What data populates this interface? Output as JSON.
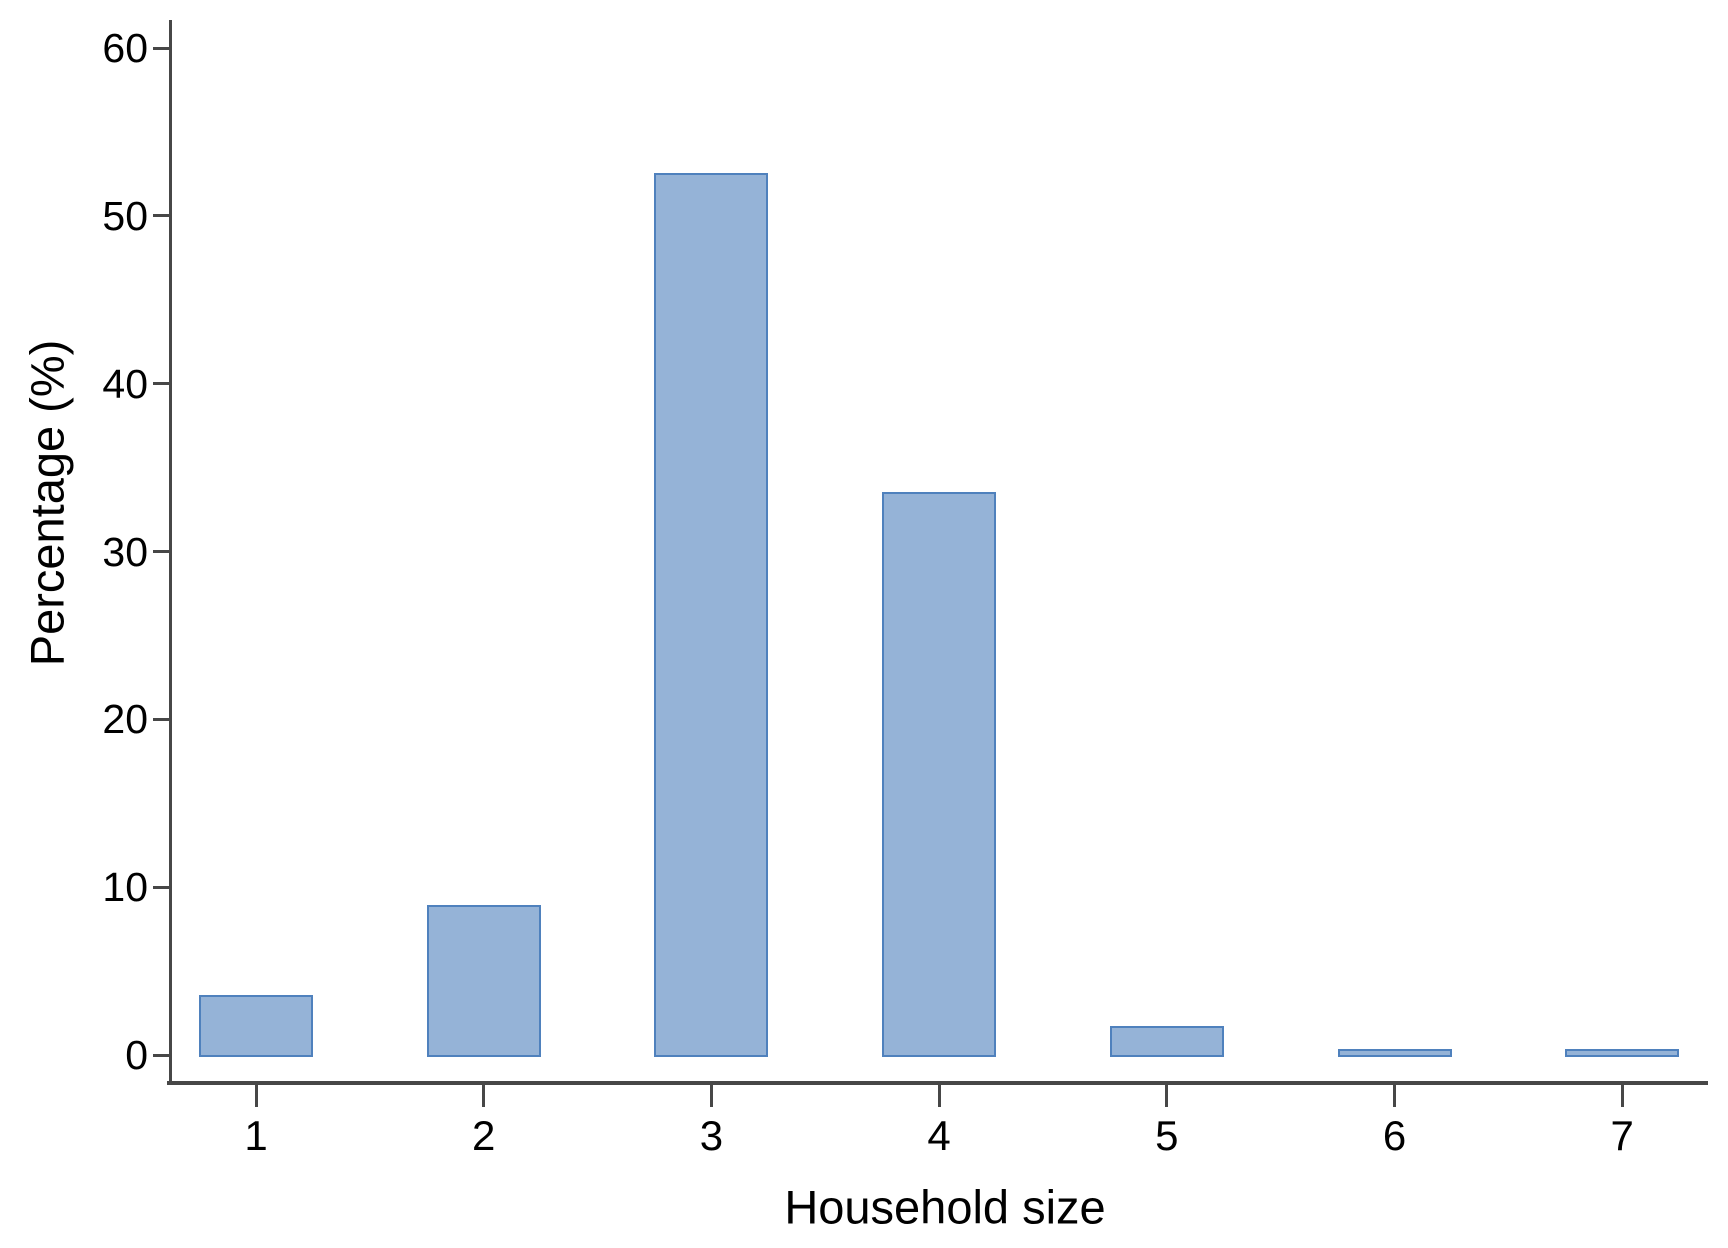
{
  "chart_data": {
    "type": "bar",
    "title": "",
    "xlabel": "Household size",
    "ylabel": "Percentage (%)",
    "categories": [
      "1",
      "2",
      "3",
      "4",
      "5",
      "6",
      "7"
    ],
    "values": [
      3.4,
      8.8,
      52.4,
      33.4,
      1.6,
      0.2,
      0.2
    ],
    "y_ticks": [
      0,
      10,
      20,
      30,
      40,
      50,
      60
    ],
    "ylim": [
      0,
      62
    ],
    "grid": "off",
    "legend": "none",
    "bar_fill_color": "#95B3D7",
    "bar_border_color": "#4F81BD",
    "axis_color": "#474747",
    "text_color": "#000000",
    "background_color": "#FFFFFF"
  }
}
